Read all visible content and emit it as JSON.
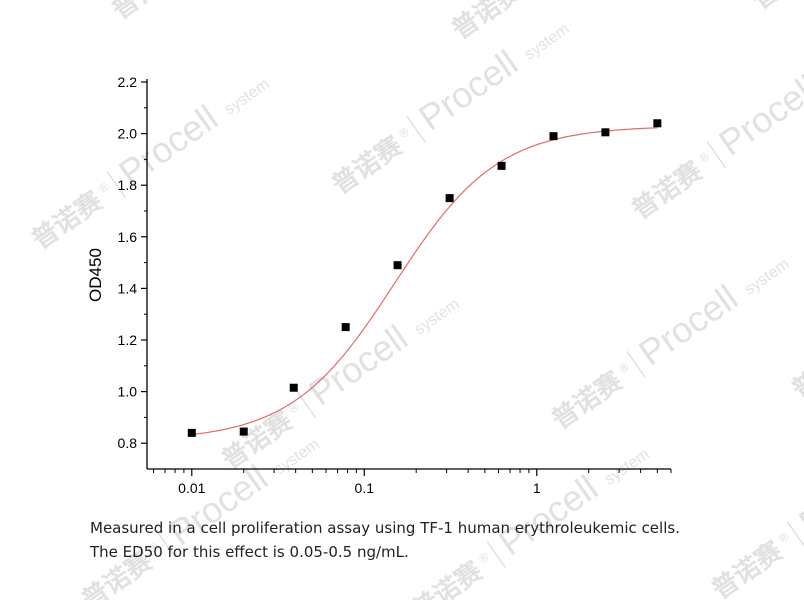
{
  "watermark": {
    "cn": "普诺赛",
    "reg": "®",
    "brand": "Procell",
    "sub": "system"
  },
  "chart_data": {
    "type": "scatter",
    "xscale": "log",
    "xlim": [
      0.0055,
      6
    ],
    "ylim": [
      0.7,
      2.2
    ],
    "xlabel": "",
    "ylabel": "OD450",
    "x_ticks": [
      0.01,
      0.1,
      1
    ],
    "x_tick_labels": [
      "0.01",
      "0.1",
      "1"
    ],
    "y_ticks": [
      0.8,
      1.0,
      1.2,
      1.4,
      1.6,
      1.8,
      2.0,
      2.2
    ],
    "y_tick_labels": [
      "0.8",
      "1.0",
      "1.2",
      "1.4",
      "1.6",
      "1.8",
      "2.0",
      "2.2"
    ],
    "grid": false,
    "legend": "none",
    "colors": {
      "points": "#000000",
      "fit": "#e46a6a",
      "axes": "#000000"
    },
    "points": {
      "x": [
        0.01,
        0.02,
        0.039,
        0.078,
        0.156,
        0.3125,
        0.625,
        1.25,
        2.5,
        5
      ],
      "y": [
        0.84,
        0.845,
        1.015,
        1.25,
        1.49,
        1.75,
        1.875,
        1.99,
        2.005,
        2.04
      ]
    },
    "fit": {
      "model": "4PL",
      "bottom": 0.81,
      "top": 2.03,
      "ec50": 0.15,
      "hill": 1.45
    }
  },
  "caption": {
    "line1": "Measured in a cell proliferation assay using TF-1 human erythroleukemic cells.",
    "line2": "The ED50 for this effect is 0.05-0.5 ng/mL."
  }
}
